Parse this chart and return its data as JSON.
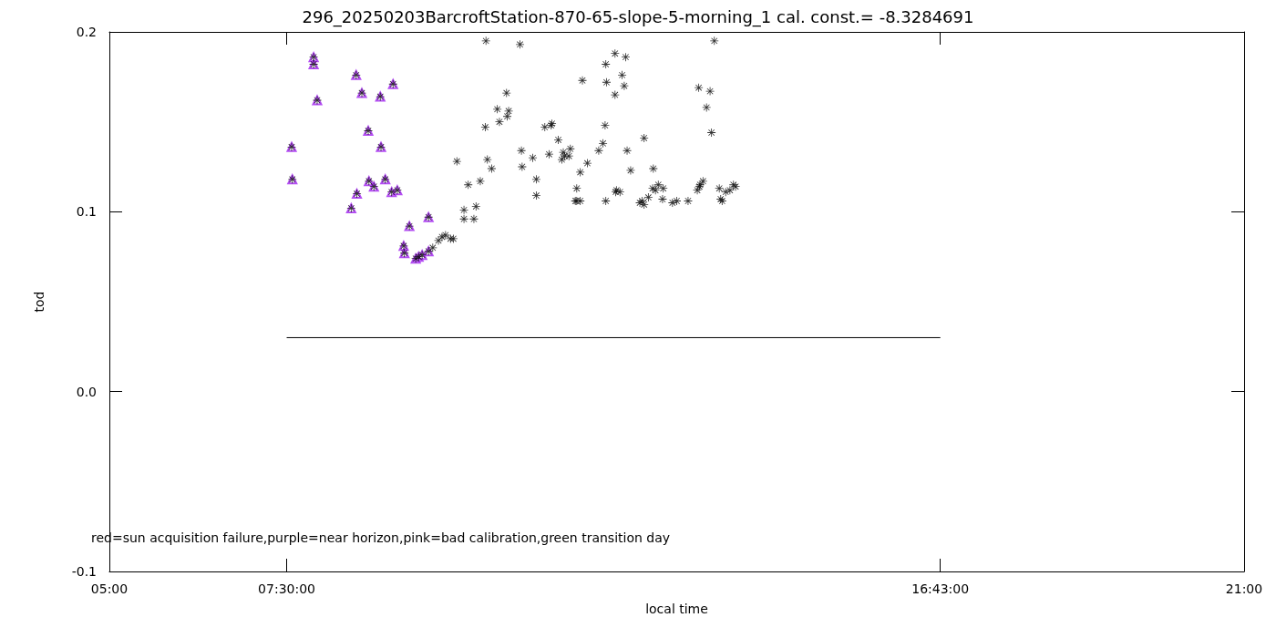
{
  "chart_data": {
    "type": "scatter",
    "title": "296_20250203BarcroftStation-870-65-slope-5-morning_1 cal. const.= -8.3284691",
    "xlabel": "local time",
    "ylabel": "tod",
    "xlim": [
      5,
      21
    ],
    "xticks": [
      {
        "value": 5,
        "label": "05:00"
      },
      {
        "value": 7.5,
        "label": "07:30:00"
      },
      {
        "value": 16.71667,
        "label": "16:43:00"
      },
      {
        "value": 21,
        "label": "21:00"
      }
    ],
    "ylim": [
      -0.1,
      0.2
    ],
    "yticks": [
      {
        "value": -0.1,
        "label": "-0.1"
      },
      {
        "value": 0,
        "label": "0.0"
      },
      {
        "value": 0.1,
        "label": "0.1"
      },
      {
        "value": 0.2,
        "label": "0.2"
      }
    ],
    "grid": false,
    "series": [
      {
        "color": "#a020f0",
        "marker": "triangle",
        "x": [
          7.57,
          7.58,
          7.88,
          7.88,
          7.93,
          8.41,
          8.48,
          8.49,
          8.56,
          8.65,
          8.66,
          8.73,
          8.82,
          8.83,
          8.89,
          8.98,
          9.0,
          9.06,
          9.15,
          9.16,
          9.23,
          9.32,
          9.36,
          9.41,
          9.5,
          9.5
        ],
        "values": [
          0.136,
          0.118,
          0.186,
          0.182,
          0.162,
          0.102,
          0.176,
          0.11,
          0.166,
          0.145,
          0.117,
          0.114,
          0.164,
          0.136,
          0.118,
          0.111,
          0.171,
          0.112,
          0.081,
          0.077,
          0.092,
          0.074,
          0.075,
          0.076,
          0.097,
          0.078
        ]
      },
      {
        "color": "#000000",
        "marker": "star",
        "x": [
          7.57,
          7.58,
          7.88,
          7.88,
          7.93,
          8.41,
          8.48,
          8.49,
          8.56,
          8.65,
          8.66,
          8.73,
          8.82,
          8.83,
          8.89,
          8.98,
          9.0,
          9.06,
          9.15,
          9.16,
          9.23,
          9.32,
          9.36,
          9.41,
          9.5,
          9.5,
          9.56,
          9.64,
          9.69,
          9.74,
          9.81,
          9.85,
          9.9,
          10.0,
          10.0,
          10.17,
          10.14,
          10.06,
          10.23,
          10.3,
          10.31,
          10.33,
          10.39,
          10.47,
          10.5,
          10.6,
          10.61,
          10.63,
          10.79,
          10.81,
          10.82,
          10.97,
          11.02,
          11.02,
          11.14,
          11.2,
          11.24,
          11.23,
          11.33,
          11.38,
          11.4,
          11.42,
          11.48,
          11.5,
          11.59,
          11.64,
          11.57,
          11.59,
          11.67,
          11.74,
          11.64,
          11.9,
          11.96,
          11.99,
          12.0,
          12.13,
          12.28,
          12.23,
          12.01,
          12.26,
          12.13,
          12.54,
          12.3,
          12.35,
          12.2,
          12.15,
          12.14,
          12.0,
          12.48,
          12.51,
          12.54,
          12.6,
          12.66,
          12.7,
          12.74,
          12.67,
          12.81,
          12.8,
          12.94,
          13.0,
          13.16,
          13.29,
          13.37,
          13.33,
          13.32,
          13.49,
          13.42,
          13.31,
          13.47,
          13.53,
          13.6,
          13.62,
          13.64,
          13.69,
          13.75,
          13.8,
          13.83
        ],
        "values": [
          0.136,
          0.118,
          0.186,
          0.182,
          0.162,
          0.102,
          0.176,
          0.11,
          0.166,
          0.145,
          0.117,
          0.114,
          0.164,
          0.136,
          0.118,
          0.111,
          0.171,
          0.112,
          0.081,
          0.077,
          0.092,
          0.074,
          0.075,
          0.076,
          0.097,
          0.078,
          0.08,
          0.084,
          0.086,
          0.087,
          0.085,
          0.085,
          0.128,
          0.101,
          0.096,
          0.103,
          0.096,
          0.115,
          0.117,
          0.147,
          0.195,
          0.129,
          0.124,
          0.157,
          0.15,
          0.166,
          0.153,
          0.156,
          0.193,
          0.134,
          0.125,
          0.13,
          0.118,
          0.109,
          0.147,
          0.132,
          0.149,
          0.148,
          0.14,
          0.129,
          0.133,
          0.131,
          0.131,
          0.135,
          0.113,
          0.106,
          0.106,
          0.106,
          0.173,
          0.127,
          0.122,
          0.134,
          0.138,
          0.148,
          0.182,
          0.188,
          0.186,
          0.176,
          0.172,
          0.17,
          0.165,
          0.141,
          0.134,
          0.123,
          0.111,
          0.112,
          0.111,
          0.106,
          0.105,
          0.106,
          0.104,
          0.108,
          0.113,
          0.112,
          0.115,
          0.124,
          0.113,
          0.107,
          0.105,
          0.106,
          0.106,
          0.112,
          0.117,
          0.115,
          0.114,
          0.144,
          0.158,
          0.169,
          0.167,
          0.195,
          0.113,
          0.107,
          0.106,
          0.111,
          0.112,
          0.115,
          0.114
        ]
      },
      {
        "type": "line",
        "color": "#000000",
        "marker": "none",
        "x": [
          7.5,
          16.71667
        ],
        "values": [
          0.03,
          0.03
        ]
      }
    ],
    "annotations": [
      "red=sun acquisition failure,purple=near horizon,pink=bad calibration,green transition day"
    ]
  }
}
